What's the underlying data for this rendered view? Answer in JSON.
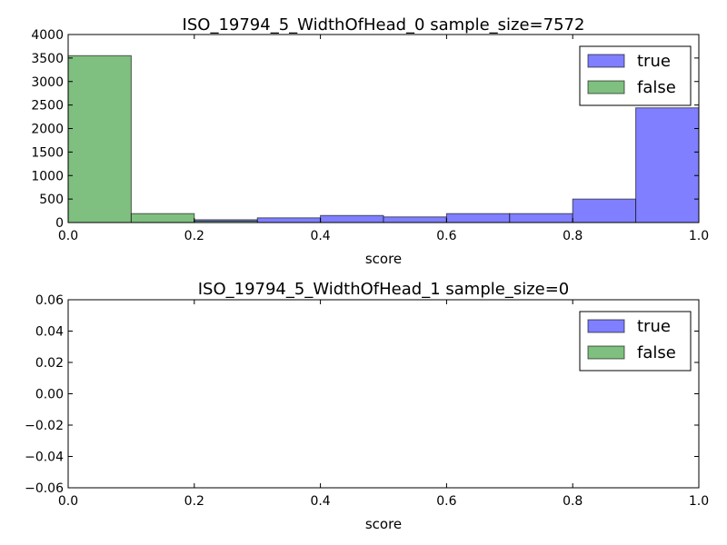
{
  "chart_data": [
    {
      "type": "bar",
      "title": "ISO_19794_5_WidthOfHead_0 sample_size=7572",
      "xlabel": "score",
      "ylabel": "",
      "xlim": [
        0.0,
        1.0
      ],
      "ylim": [
        0,
        4000
      ],
      "x_ticks": [
        "0.0",
        "0.2",
        "0.4",
        "0.6",
        "0.8",
        "1.0"
      ],
      "y_ticks": [
        "0",
        "500",
        "1000",
        "1500",
        "2000",
        "2500",
        "3000",
        "3500",
        "4000"
      ],
      "bin_edges": [
        0.0,
        0.1,
        0.2,
        0.3,
        0.4,
        0.5,
        0.6,
        0.7,
        0.8,
        0.9,
        1.0
      ],
      "legend_position": "top-right",
      "series": [
        {
          "name": "true",
          "color": "#7f7fff",
          "values": [
            0,
            0,
            60,
            100,
            150,
            120,
            190,
            190,
            500,
            2440
          ]
        },
        {
          "name": "false",
          "color": "#7fbf7f",
          "values": [
            3550,
            190,
            30,
            0,
            0,
            0,
            0,
            0,
            0,
            0
          ]
        }
      ]
    },
    {
      "type": "bar",
      "title": "ISO_19794_5_WidthOfHead_1 sample_size=0",
      "xlabel": "score",
      "ylabel": "",
      "xlim": [
        0.0,
        1.0
      ],
      "ylim": [
        -0.06,
        0.06
      ],
      "x_ticks": [
        "0.0",
        "0.2",
        "0.4",
        "0.6",
        "0.8",
        "1.0"
      ],
      "y_ticks": [
        "−0.06",
        "−0.04",
        "−0.02",
        "0.00",
        "0.02",
        "0.04",
        "0.06"
      ],
      "bin_edges": [
        0.0,
        0.1,
        0.2,
        0.3,
        0.4,
        0.5,
        0.6,
        0.7,
        0.8,
        0.9,
        1.0
      ],
      "legend_position": "top-right",
      "series": [
        {
          "name": "true",
          "color": "#7f7fff",
          "values": [
            0,
            0,
            0,
            0,
            0,
            0,
            0,
            0,
            0,
            0
          ]
        },
        {
          "name": "false",
          "color": "#7fbf7f",
          "values": [
            0,
            0,
            0,
            0,
            0,
            0,
            0,
            0,
            0,
            0
          ]
        }
      ]
    }
  ]
}
